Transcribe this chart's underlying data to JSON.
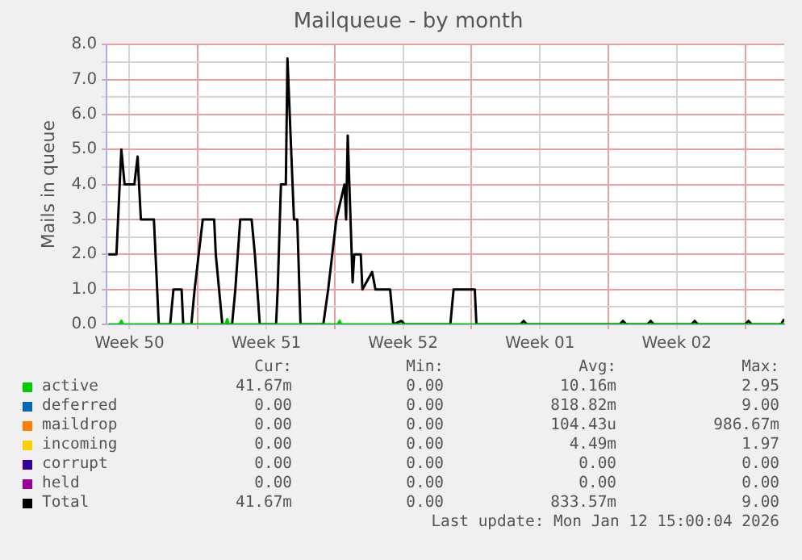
{
  "chart_data": {
    "type": "line",
    "title": "Mailqueue - by month",
    "ylabel": "Mails in queue",
    "xlim": [
      "2025-12-10T08:00",
      "2026-01-14T00:00"
    ],
    "xticks": [
      {
        "value": "2025-12-11T12:00",
        "label": "Week 50"
      },
      {
        "value": "2025-12-15T00:00",
        "label": null
      },
      {
        "value": "2025-12-18T12:00",
        "label": "Week 51"
      },
      {
        "value": "2025-12-22T00:00",
        "label": null
      },
      {
        "value": "2025-12-25T12:00",
        "label": "Week 52"
      },
      {
        "value": "2025-12-29T00:00",
        "label": null
      },
      {
        "value": "2026-01-01T12:00",
        "label": "Week 01"
      },
      {
        "value": "2026-01-05T00:00",
        "label": null
      },
      {
        "value": "2026-01-08T12:00",
        "label": "Week 02"
      },
      {
        "value": "2026-01-12T00:00",
        "label": null
      }
    ],
    "ylim": [
      0,
      8
    ],
    "yticks": [
      {
        "value": 0,
        "label": "0.0"
      },
      {
        "value": 0.5,
        "label": null
      },
      {
        "value": 1,
        "label": "1.0"
      },
      {
        "value": 1.5,
        "label": null
      },
      {
        "value": 2,
        "label": "2.0"
      },
      {
        "value": 2.5,
        "label": null
      },
      {
        "value": 3,
        "label": "3.0"
      },
      {
        "value": 3.5,
        "label": null
      },
      {
        "value": 4,
        "label": "4.0"
      },
      {
        "value": 4.5,
        "label": null
      },
      {
        "value": 5,
        "label": "5.0"
      },
      {
        "value": 5.5,
        "label": null
      },
      {
        "value": 6,
        "label": "6.0"
      },
      {
        "value": 6.5,
        "label": null
      },
      {
        "value": 7,
        "label": "7.0"
      },
      {
        "value": 7.5,
        "label": null
      },
      {
        "value": 8,
        "label": "8.0"
      }
    ],
    "grid": true,
    "legend": "bottom",
    "marker": "none",
    "line_style": "solid",
    "series": [
      {
        "name": "active",
        "color": "#00cc00",
        "x": [
          "2025-12-10T10:00",
          "2025-12-11T00:00",
          "2025-12-11T02:00",
          "2025-12-11T04:00",
          "2025-12-16T10:00",
          "2025-12-16T12:00",
          "2025-12-16T14:00",
          "2025-12-22T04:00",
          "2025-12-22T06:00",
          "2025-12-22T08:00",
          "2026-01-13T22:00",
          "2026-01-14T00:00"
        ],
        "values": [
          0,
          0,
          0.1,
          0,
          0,
          0.15,
          0,
          0,
          0.1,
          0,
          0,
          0.05
        ]
      },
      {
        "name": "deferred",
        "color": "#0066b3"
      },
      {
        "name": "maildrop",
        "color": "#ff8000"
      },
      {
        "name": "incoming",
        "color": "#ffcc00"
      },
      {
        "name": "corrupt",
        "color": "#330099"
      },
      {
        "name": "held",
        "color": "#990099"
      },
      {
        "name": "Total",
        "color": "#000000",
        "x": [
          "2025-12-10T10:00",
          "2025-12-10T20:00",
          "2025-12-11T02:00",
          "2025-12-11T06:00",
          "2025-12-11T18:00",
          "2025-12-11T22:00",
          "2025-12-12T02:00",
          "2025-12-12T18:00",
          "2025-12-13T00:00",
          "2025-12-13T14:00",
          "2025-12-13T18:00",
          "2025-12-14T04:00",
          "2025-12-14T06:00",
          "2025-12-14T16:00",
          "2025-12-14T20:00",
          "2025-12-15T06:00",
          "2025-12-15T20:00",
          "2025-12-15T22:00",
          "2025-12-16T02:00",
          "2025-12-16T06:00",
          "2025-12-16T18:00",
          "2025-12-16T22:00",
          "2025-12-17T04:00",
          "2025-12-17T18:00",
          "2025-12-17T22:00",
          "2025-12-18T04:00",
          "2025-12-19T00:00",
          "2025-12-19T02:00",
          "2025-12-19T06:00",
          "2025-12-19T12:00",
          "2025-12-19T14:00",
          "2025-12-19T22:00",
          "2025-12-20T02:00",
          "2025-12-20T06:00",
          "2025-12-21T10:00",
          "2025-12-21T16:00",
          "2025-12-22T02:00",
          "2025-12-22T12:00",
          "2025-12-22T14:00",
          "2025-12-22T16:00",
          "2025-12-22T22:00",
          "2025-12-23T00:00",
          "2025-12-23T08:00",
          "2025-12-23T10:00",
          "2025-12-23T22:00",
          "2025-12-24T02:00",
          "2025-12-24T20:00",
          "2025-12-25T00:00",
          "2025-12-25T10:00",
          "2025-12-25T14:00",
          "2025-12-27T22:00",
          "2025-12-28T02:00",
          "2025-12-29T04:00",
          "2025-12-29T06:00",
          "2025-12-31T12:00",
          "2025-12-31T16:00",
          "2025-12-31T20:00",
          "2026-01-05T14:00",
          "2026-01-05T18:00",
          "2026-01-05T22:00",
          "2026-01-07T00:00",
          "2026-01-07T04:00",
          "2026-01-07T08:00",
          "2026-01-09T06:00",
          "2026-01-09T10:00",
          "2026-01-09T14:00",
          "2026-01-12T00:00",
          "2026-01-12T04:00",
          "2026-01-12T08:00",
          "2026-01-13T20:00",
          "2026-01-14T00:00"
        ],
        "values": [
          2,
          2,
          5,
          4,
          4,
          4.8,
          3,
          3,
          0,
          0,
          1,
          1,
          0,
          0,
          1,
          3,
          3,
          2,
          1,
          0,
          0,
          1,
          3,
          3,
          2,
          0,
          0,
          1,
          4,
          4,
          7.6,
          3,
          3,
          0,
          0,
          1,
          3,
          4,
          3,
          5.4,
          1.2,
          2,
          2,
          1,
          1.5,
          1,
          1,
          0,
          0.1,
          0,
          0,
          1,
          1,
          0,
          0,
          0.1,
          0,
          0,
          0.1,
          0,
          0,
          0.1,
          0,
          0,
          0.1,
          0,
          0,
          0.1,
          0,
          0,
          0.15
        ]
      }
    ],
    "annotations": [
      "Cur:",
      "Min:",
      "Avg:",
      "Max:",
      "41.67m",
      "0.00",
      "10.16m",
      "2.95",
      "0.00",
      "0.00",
      "818.82m",
      "9.00",
      "0.00",
      "0.00",
      "104.43u",
      "986.67m",
      "0.00",
      "0.00",
      "4.49m",
      "1.97",
      "0.00",
      "0.00",
      "0.00",
      "0.00",
      "0.00",
      "0.00",
      "0.00",
      "0.00",
      "41.67m",
      "0.00",
      "833.57m",
      "9.00",
      "Last update: Mon Jan 12 15:00:04 2026"
    ]
  }
}
